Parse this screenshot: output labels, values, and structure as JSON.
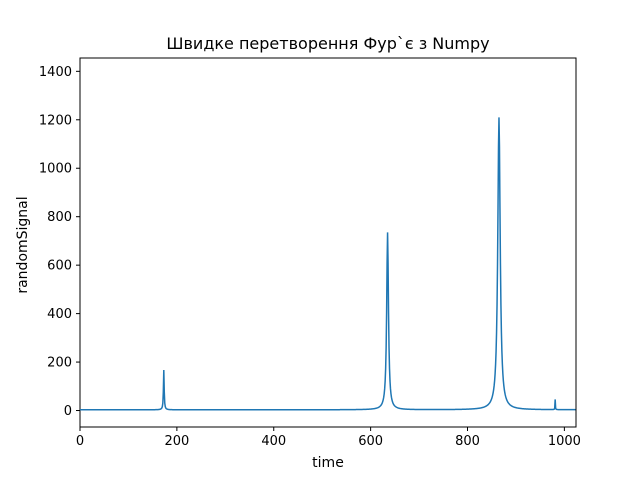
{
  "chart_data": {
    "type": "line",
    "title": "Швидке перетворення Фур`є з Numpy",
    "xlabel": "time",
    "ylabel": "randomSignal",
    "xlim": [
      0,
      1024
    ],
    "ylim": [
      -68,
      1455
    ],
    "x_ticks": [
      0,
      200,
      400,
      600,
      800,
      1000
    ],
    "y_ticks": [
      0,
      200,
      400,
      600,
      800,
      1000,
      1200,
      1400
    ],
    "grid": false,
    "series_color": "#1f77b4",
    "baseline": 3,
    "peaks": [
      {
        "x": 173,
        "y": 167
      },
      {
        "x": 635,
        "y": 735
      },
      {
        "x": 865,
        "y": 1210
      },
      {
        "x": 981,
        "y": 45
      }
    ]
  }
}
